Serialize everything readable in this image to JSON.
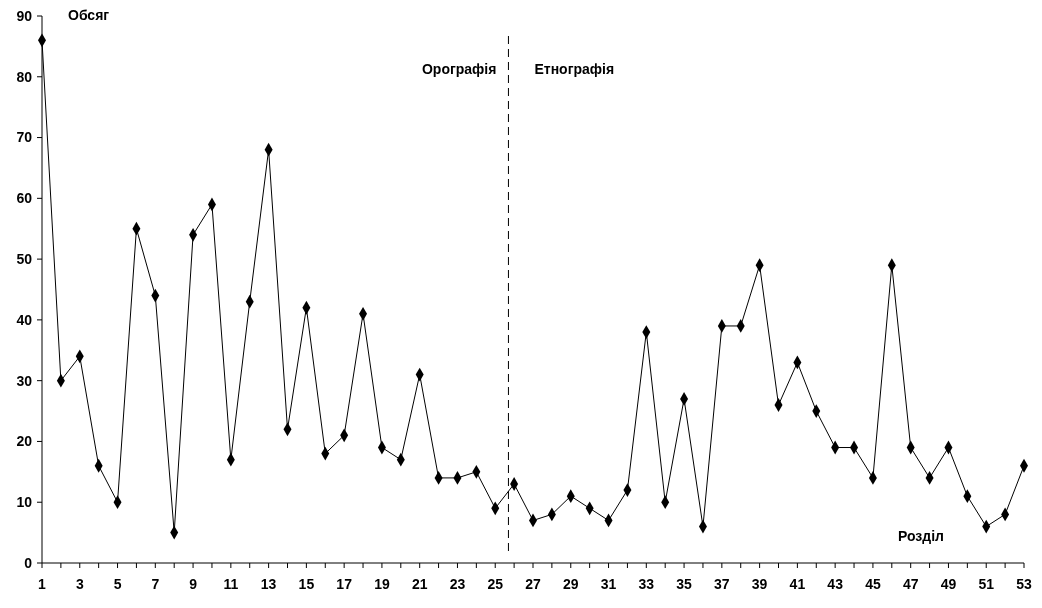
{
  "chart_data": {
    "type": "line",
    "xlabel": "Розділ",
    "ylabel": "Обсяг",
    "x": [
      1,
      2,
      3,
      4,
      5,
      6,
      7,
      8,
      9,
      10,
      11,
      12,
      13,
      14,
      15,
      16,
      17,
      18,
      19,
      20,
      21,
      22,
      23,
      24,
      25,
      26,
      27,
      28,
      29,
      30,
      31,
      32,
      33,
      34,
      35,
      36,
      37,
      38,
      39,
      40,
      41,
      42,
      43,
      44,
      45,
      46,
      47,
      48,
      49,
      50,
      51,
      52,
      53
    ],
    "series": [
      {
        "color": "#000000",
        "values": [
          86,
          30,
          34,
          16,
          10,
          55,
          44,
          5,
          54,
          59,
          17,
          43,
          68,
          22,
          42,
          18,
          21,
          41,
          19,
          17,
          31,
          14,
          14,
          15,
          9,
          13,
          7,
          8,
          11,
          9,
          7,
          12,
          38,
          10,
          27,
          6,
          39,
          39,
          49,
          26,
          33,
          25,
          19,
          19,
          14,
          49,
          19,
          14,
          19,
          11,
          6,
          8,
          16
        ]
      }
    ],
    "xlim": [
      1,
      53
    ],
    "xticks": [
      1,
      {
        "value": 2,
        "label": null
      },
      3,
      {
        "value": 4,
        "label": null
      },
      5,
      {
        "value": 6,
        "label": null
      },
      7,
      {
        "value": 8,
        "label": null
      },
      9,
      {
        "value": 10,
        "label": null
      },
      11,
      {
        "value": 12,
        "label": null
      },
      13,
      {
        "value": 14,
        "label": null
      },
      15,
      {
        "value": 16,
        "label": null
      },
      17,
      {
        "value": 18,
        "label": null
      },
      19,
      {
        "value": 20,
        "label": null
      },
      21,
      {
        "value": 22,
        "label": null
      },
      23,
      {
        "value": 24,
        "label": null
      },
      25,
      {
        "value": 26,
        "label": null
      },
      27,
      {
        "value": 28,
        "label": null
      },
      29,
      {
        "value": 30,
        "label": null
      },
      31,
      {
        "value": 32,
        "label": null
      },
      33,
      {
        "value": 34,
        "label": null
      },
      35,
      {
        "value": 36,
        "label": null
      },
      37,
      {
        "value": 38,
        "label": null
      },
      39,
      {
        "value": 40,
        "label": null
      },
      41,
      {
        "value": 42,
        "label": null
      },
      43,
      {
        "value": 44,
        "label": null
      },
      45,
      {
        "value": 46,
        "label": null
      },
      47,
      {
        "value": 48,
        "label": null
      },
      49,
      {
        "value": 50,
        "label": null
      },
      51,
      {
        "value": 52,
        "label": null
      },
      53
    ],
    "ylim": [
      0,
      90
    ],
    "yticks": [
      0,
      10,
      20,
      30,
      40,
      50,
      60,
      70,
      80,
      90
    ],
    "ref_lines": [
      {
        "axis": "x",
        "value": 25.7,
        "line_style": "dashed",
        "color": "#000000"
      }
    ],
    "annotations": [
      "Орографія",
      "Етнографія"
    ],
    "marker": "diamond",
    "line_style": "solid",
    "grid": false
  }
}
